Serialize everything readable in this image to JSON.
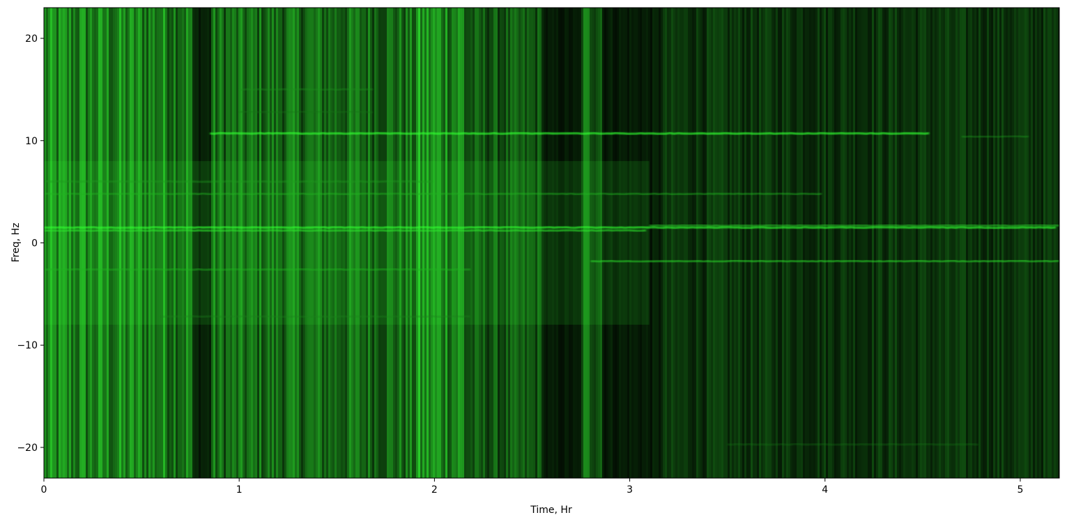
{
  "chart_data": {
    "type": "heatmap",
    "xlabel": "Time, Hr",
    "ylabel": "Freq, Hz",
    "xlim": [
      0,
      5.2
    ],
    "ylim": [
      -23,
      23
    ],
    "xticks": [
      0,
      1,
      2,
      3,
      4,
      5
    ],
    "yticks": [
      -20,
      -10,
      0,
      10,
      20
    ],
    "ytick_labels": [
      "−20",
      "−10",
      "0",
      "10",
      "20"
    ],
    "colormap": {
      "low": "#000000",
      "high": "#33ff33"
    },
    "background_level": 0.22,
    "bright_regions": [
      {
        "t_start": 0.0,
        "t_end": 0.75,
        "level": 0.55
      },
      {
        "t_start": 0.75,
        "t_end": 0.85,
        "level": 0.15
      },
      {
        "t_start": 0.85,
        "t_end": 1.9,
        "level": 0.45
      },
      {
        "t_start": 1.9,
        "t_end": 2.15,
        "level": 0.6
      },
      {
        "t_start": 2.15,
        "t_end": 2.55,
        "level": 0.35
      },
      {
        "t_start": 2.55,
        "t_end": 2.75,
        "level": 0.1
      },
      {
        "t_start": 2.75,
        "t_end": 2.85,
        "level": 0.45
      },
      {
        "t_start": 2.85,
        "t_end": 3.15,
        "level": 0.12
      },
      {
        "t_start": 3.15,
        "t_end": 5.2,
        "level": 0.22
      }
    ],
    "tonal_lines": [
      {
        "freq": 10.7,
        "t_start": 0.85,
        "t_end": 4.55,
        "intensity": 0.95
      },
      {
        "freq": 10.4,
        "t_start": 4.7,
        "t_end": 5.05,
        "intensity": 0.5
      },
      {
        "freq": 1.5,
        "t_start": 0.0,
        "t_end": 5.2,
        "intensity": 0.9
      },
      {
        "freq": 1.2,
        "t_start": 0.0,
        "t_end": 3.1,
        "intensity": 0.8
      },
      {
        "freq": 1.7,
        "t_start": 3.1,
        "t_end": 5.2,
        "intensity": 0.7
      },
      {
        "freq": 4.8,
        "t_start": 0.0,
        "t_end": 4.0,
        "intensity": 0.6
      },
      {
        "freq": 6.0,
        "t_start": 0.0,
        "t_end": 2.0,
        "intensity": 0.5
      },
      {
        "freq": -1.8,
        "t_start": 2.8,
        "t_end": 5.2,
        "intensity": 0.75
      },
      {
        "freq": -2.6,
        "t_start": 0.0,
        "t_end": 2.2,
        "intensity": 0.6
      },
      {
        "freq": -7.2,
        "t_start": 0.6,
        "t_end": 2.2,
        "intensity": 0.4
      },
      {
        "freq": 15.0,
        "t_start": 1.0,
        "t_end": 1.7,
        "intensity": 0.45
      },
      {
        "freq": 12.8,
        "t_start": 1.0,
        "t_end": 1.7,
        "intensity": 0.35
      },
      {
        "freq": -19.7,
        "t_start": 3.5,
        "t_end": 4.8,
        "intensity": 0.35
      }
    ]
  }
}
